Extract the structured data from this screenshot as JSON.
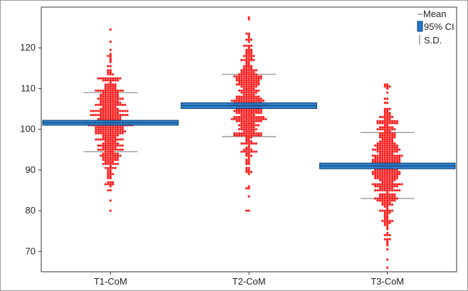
{
  "chart_data": {
    "type": "scatter",
    "title": "",
    "xlabel": "",
    "ylabel": "",
    "ylim": [
      65,
      130
    ],
    "yticks": [
      70,
      80,
      90,
      100,
      110,
      120
    ],
    "grid": false,
    "legend_position": "top-right",
    "legend": {
      "mean": "Mean",
      "ci": "95% CI",
      "sd": "S.D."
    },
    "colors": {
      "points": "#ff1a1a",
      "ci_fill": "#1f77c7",
      "ci_stroke": "#0a3f73",
      "sd_line": "#999999"
    },
    "groups": [
      {
        "name": "T1-CoM",
        "mean": 101.6,
        "ci": [
          101.0,
          102.2
        ],
        "sd": [
          94.5,
          109.0
        ],
        "min": 80,
        "max": 124.5
      },
      {
        "name": "T2-CoM",
        "mean": 105.8,
        "ci": [
          105.1,
          106.5
        ],
        "sd": [
          98.2,
          113.5
        ],
        "min": 80,
        "max": 127.5
      },
      {
        "name": "T3-CoM",
        "mean": 91.0,
        "ci": [
          90.3,
          91.7
        ],
        "sd": [
          83.0,
          99.2
        ],
        "min": 66,
        "max": 111
      }
    ]
  }
}
